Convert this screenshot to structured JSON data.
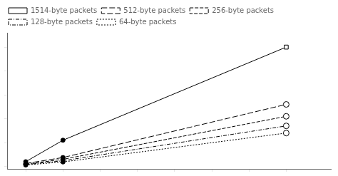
{
  "chart_data": {
    "type": "line",
    "x": [
      1,
      2,
      8
    ],
    "series": [
      {
        "name": "1514-byte packets",
        "values": [
          0.04,
          0.22,
          1.0
        ],
        "color": "#000000",
        "line_style": "solid",
        "marker": "square"
      },
      {
        "name": "512-byte packets",
        "values": [
          0.025,
          0.075,
          0.52
        ],
        "color": "#000000",
        "line_style": "longdash",
        "marker": "circle"
      },
      {
        "name": "256-byte packets",
        "values": [
          0.02,
          0.06,
          0.42
        ],
        "color": "#000000",
        "line_style": "mediumdash",
        "marker": "circle"
      },
      {
        "name": "128-byte packets",
        "values": [
          0.016,
          0.048,
          0.34
        ],
        "color": "#000000",
        "line_style": "dashdot",
        "marker": "circle"
      },
      {
        "name": "64-byte packets",
        "values": [
          0.013,
          0.038,
          0.28
        ],
        "color": "#000000",
        "line_style": "dotted",
        "marker": "circle"
      }
    ],
    "xlim": [
      0.5,
      9.2
    ],
    "ylim": [
      -0.02,
      1.12
    ],
    "xticks": [
      1,
      2,
      3,
      4,
      5,
      6,
      7,
      8
    ],
    "yticks": [
      0.0,
      0.2,
      0.4,
      0.6,
      0.8,
      1.0
    ],
    "tick_labels": false,
    "grid": false,
    "legend": "upper left"
  }
}
